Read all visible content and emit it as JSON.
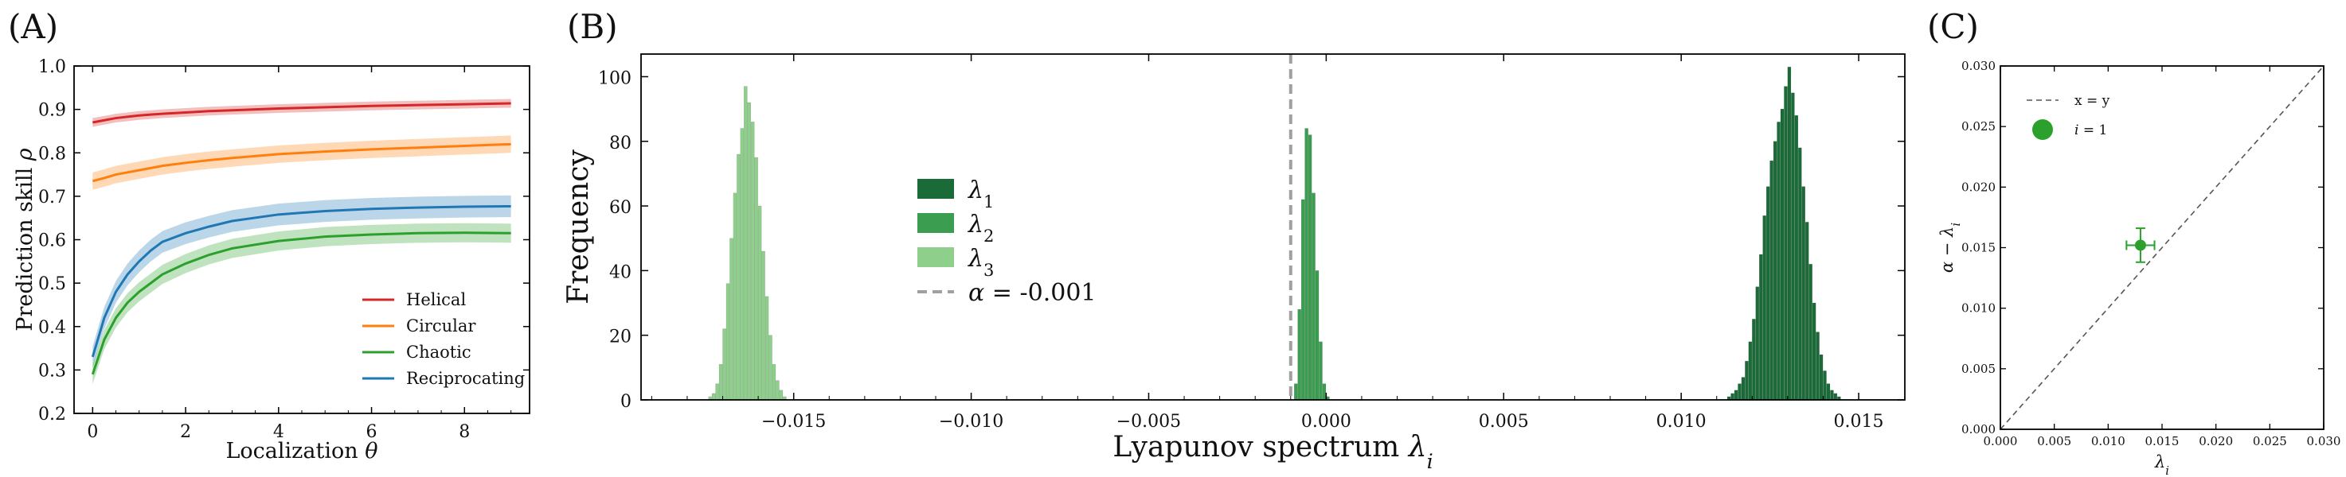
{
  "panels": {
    "A": {
      "letter": "(A)",
      "chart_data": {
        "type": "line",
        "xlabel": "Localization θ",
        "ylabel": "Prediction skill ρ",
        "xlim": [
          -0.4,
          9.4
        ],
        "ylim": [
          0.2,
          1.0
        ],
        "xticks": [
          0,
          2,
          4,
          6,
          8
        ],
        "yticks": [
          0.2,
          0.3,
          0.4,
          0.5,
          0.6,
          0.7,
          0.8,
          0.9,
          1.0
        ],
        "ytick_labels": [
          "0.2",
          "0.3",
          "0.4",
          "0.5",
          "0.6",
          "0.7",
          "0.8",
          "0.9",
          "1.0"
        ],
        "legend_position": "lower-right",
        "x": [
          0,
          0.25,
          0.5,
          0.75,
          1,
          1.25,
          1.5,
          2,
          2.5,
          3,
          4,
          5,
          6,
          7,
          8,
          9
        ],
        "series": [
          {
            "name": "Helical",
            "color": "#d62728",
            "values": [
              0.87,
              0.875,
              0.88,
              0.883,
              0.886,
              0.888,
              0.89,
              0.893,
              0.896,
              0.898,
              0.902,
              0.905,
              0.908,
              0.91,
              0.912,
              0.914
            ],
            "band": 0.01
          },
          {
            "name": "Circular",
            "color": "#ff7f0e",
            "values": [
              0.735,
              0.742,
              0.75,
              0.755,
              0.76,
              0.765,
              0.77,
              0.777,
              0.783,
              0.788,
              0.797,
              0.803,
              0.808,
              0.812,
              0.816,
              0.82
            ],
            "band": 0.02
          },
          {
            "name": "Chaotic",
            "color": "#2ca02c",
            "values": [
              0.29,
              0.37,
              0.42,
              0.455,
              0.48,
              0.5,
              0.52,
              0.545,
              0.565,
              0.58,
              0.597,
              0.607,
              0.612,
              0.615,
              0.616,
              0.615
            ],
            "band": 0.022
          },
          {
            "name": "Reciprocating",
            "color": "#1f77b4",
            "values": [
              0.33,
              0.42,
              0.48,
              0.52,
              0.55,
              0.575,
              0.595,
              0.615,
              0.63,
              0.643,
              0.658,
              0.666,
              0.671,
              0.674,
              0.676,
              0.677
            ],
            "band": 0.025
          }
        ]
      }
    },
    "B": {
      "letter": "(B)",
      "chart_data": {
        "type": "bar",
        "subtype": "histogram",
        "xlabel": "Lyapunov spectrum λ_i",
        "ylabel": "Frequency",
        "xlim": [
          -0.0193,
          0.0163
        ],
        "ylim": [
          0,
          107
        ],
        "xticks": [
          -0.015,
          -0.01,
          -0.005,
          0.0,
          0.005,
          0.01,
          0.015
        ],
        "xtick_labels": [
          "−0.015",
          "−0.010",
          "−0.005",
          "0.000",
          "0.005",
          "0.010",
          "0.015"
        ],
        "yticks": [
          0,
          20,
          40,
          60,
          80,
          100
        ],
        "ytick_labels": [
          "0",
          "20",
          "40",
          "60",
          "80",
          "100"
        ],
        "legend_position": "center-left",
        "alpha_line": {
          "value": -0.001,
          "label": "α = -0.001",
          "color": "#a0a0a0"
        },
        "series": [
          {
            "name": "λ",
            "subscript": "1",
            "color": "#1a6b37",
            "bin_width": 0.0001,
            "bin_start": 0.0113,
            "counts": [
              1,
              2,
              3,
              5,
              7,
              12,
              18,
              25,
              35,
              45,
              57,
              66,
              74,
              80,
              86,
              90,
              97,
              103,
              95,
              88,
              78,
              66,
              55,
              42,
              30,
              21,
              14,
              9,
              5,
              3,
              2,
              1
            ]
          },
          {
            "name": "λ",
            "subscript": "2",
            "color": "#3a9d4f",
            "bin_width": 0.0001,
            "bin_start": -0.0009,
            "counts": [
              5,
              28,
              62,
              84,
              82,
              64,
              40,
              18,
              5,
              1
            ]
          },
          {
            "name": "λ",
            "subscript": "3",
            "color": "#8fcf8c",
            "bin_width": 0.0001,
            "bin_start": -0.0174,
            "counts": [
              1,
              2,
              5,
              11,
              22,
              36,
              50,
              64,
              76,
              84,
              97,
              92,
              86,
              75,
              60,
              46,
              32,
              20,
              11,
              6,
              3,
              1
            ]
          }
        ]
      }
    },
    "C": {
      "letter": "(C)",
      "chart_data": {
        "type": "scatter",
        "xlabel": "λ_i",
        "ylabel": "α − λ_i",
        "xlim": [
          0.0,
          0.03
        ],
        "ylim": [
          0.0,
          0.03
        ],
        "xticks": [
          0.0,
          0.005,
          0.01,
          0.015,
          0.02,
          0.025,
          0.03
        ],
        "xtick_labels": [
          "0.000",
          "0.005",
          "0.010",
          "0.015",
          "0.020",
          "0.025",
          "0.030"
        ],
        "yticks": [
          0.0,
          0.005,
          0.01,
          0.015,
          0.02,
          0.025,
          0.03
        ],
        "ytick_labels": [
          "0.000",
          "0.005",
          "0.010",
          "0.015",
          "0.020",
          "0.025",
          "0.030"
        ],
        "legend_position": "top-left",
        "reference_line": {
          "label": "x = y",
          "color": "#555555"
        },
        "points": [
          {
            "label": "i = 1",
            "x": 0.013,
            "y": 0.0152,
            "xerr": 0.0013,
            "yerr": 0.0014,
            "color": "#2ca02c"
          }
        ]
      }
    }
  }
}
